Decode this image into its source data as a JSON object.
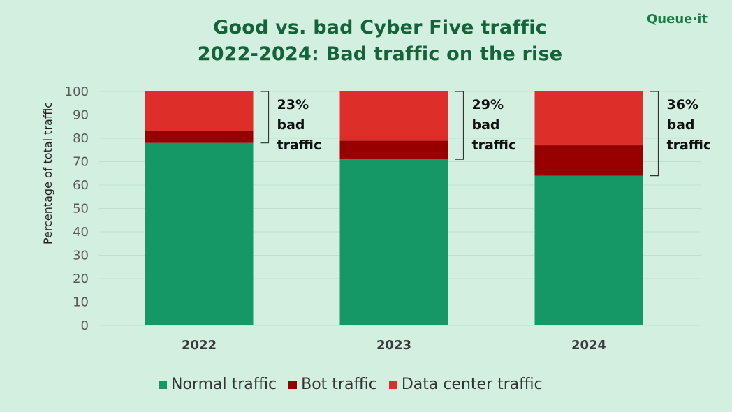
{
  "title_line1": "Good vs. bad Cyber Five traffic",
  "title_line2": "2022-2024: Bad traffic on the rise",
  "logo_text": "Queue·it",
  "chart_data": {
    "type": "bar",
    "stacked": true,
    "categories": [
      "2022",
      "2023",
      "2024"
    ],
    "series": [
      {
        "name": "Normal traffic",
        "values": [
          78,
          71,
          64
        ],
        "color": "#169866"
      },
      {
        "name": "Bot traffic",
        "values": [
          5,
          8,
          13
        ],
        "color": "#980000"
      },
      {
        "name": "Data center traffic",
        "values": [
          17,
          21,
          23
        ],
        "color": "#dd2e2a"
      }
    ],
    "ylabel": "Percentage of total traffic",
    "xlabel": "",
    "ylim": [
      0,
      100
    ],
    "yticks": [
      0,
      10,
      20,
      30,
      40,
      50,
      60,
      70,
      80,
      90,
      100
    ],
    "grid": true,
    "legend_position": "bottom",
    "annotations": [
      {
        "category": "2022",
        "lines": [
          "23%",
          "bad",
          "traffic"
        ]
      },
      {
        "category": "2023",
        "lines": [
          "29%",
          "bad",
          "traffic"
        ]
      },
      {
        "category": "2024",
        "lines": [
          "36%",
          "bad",
          "traffic"
        ]
      }
    ]
  }
}
